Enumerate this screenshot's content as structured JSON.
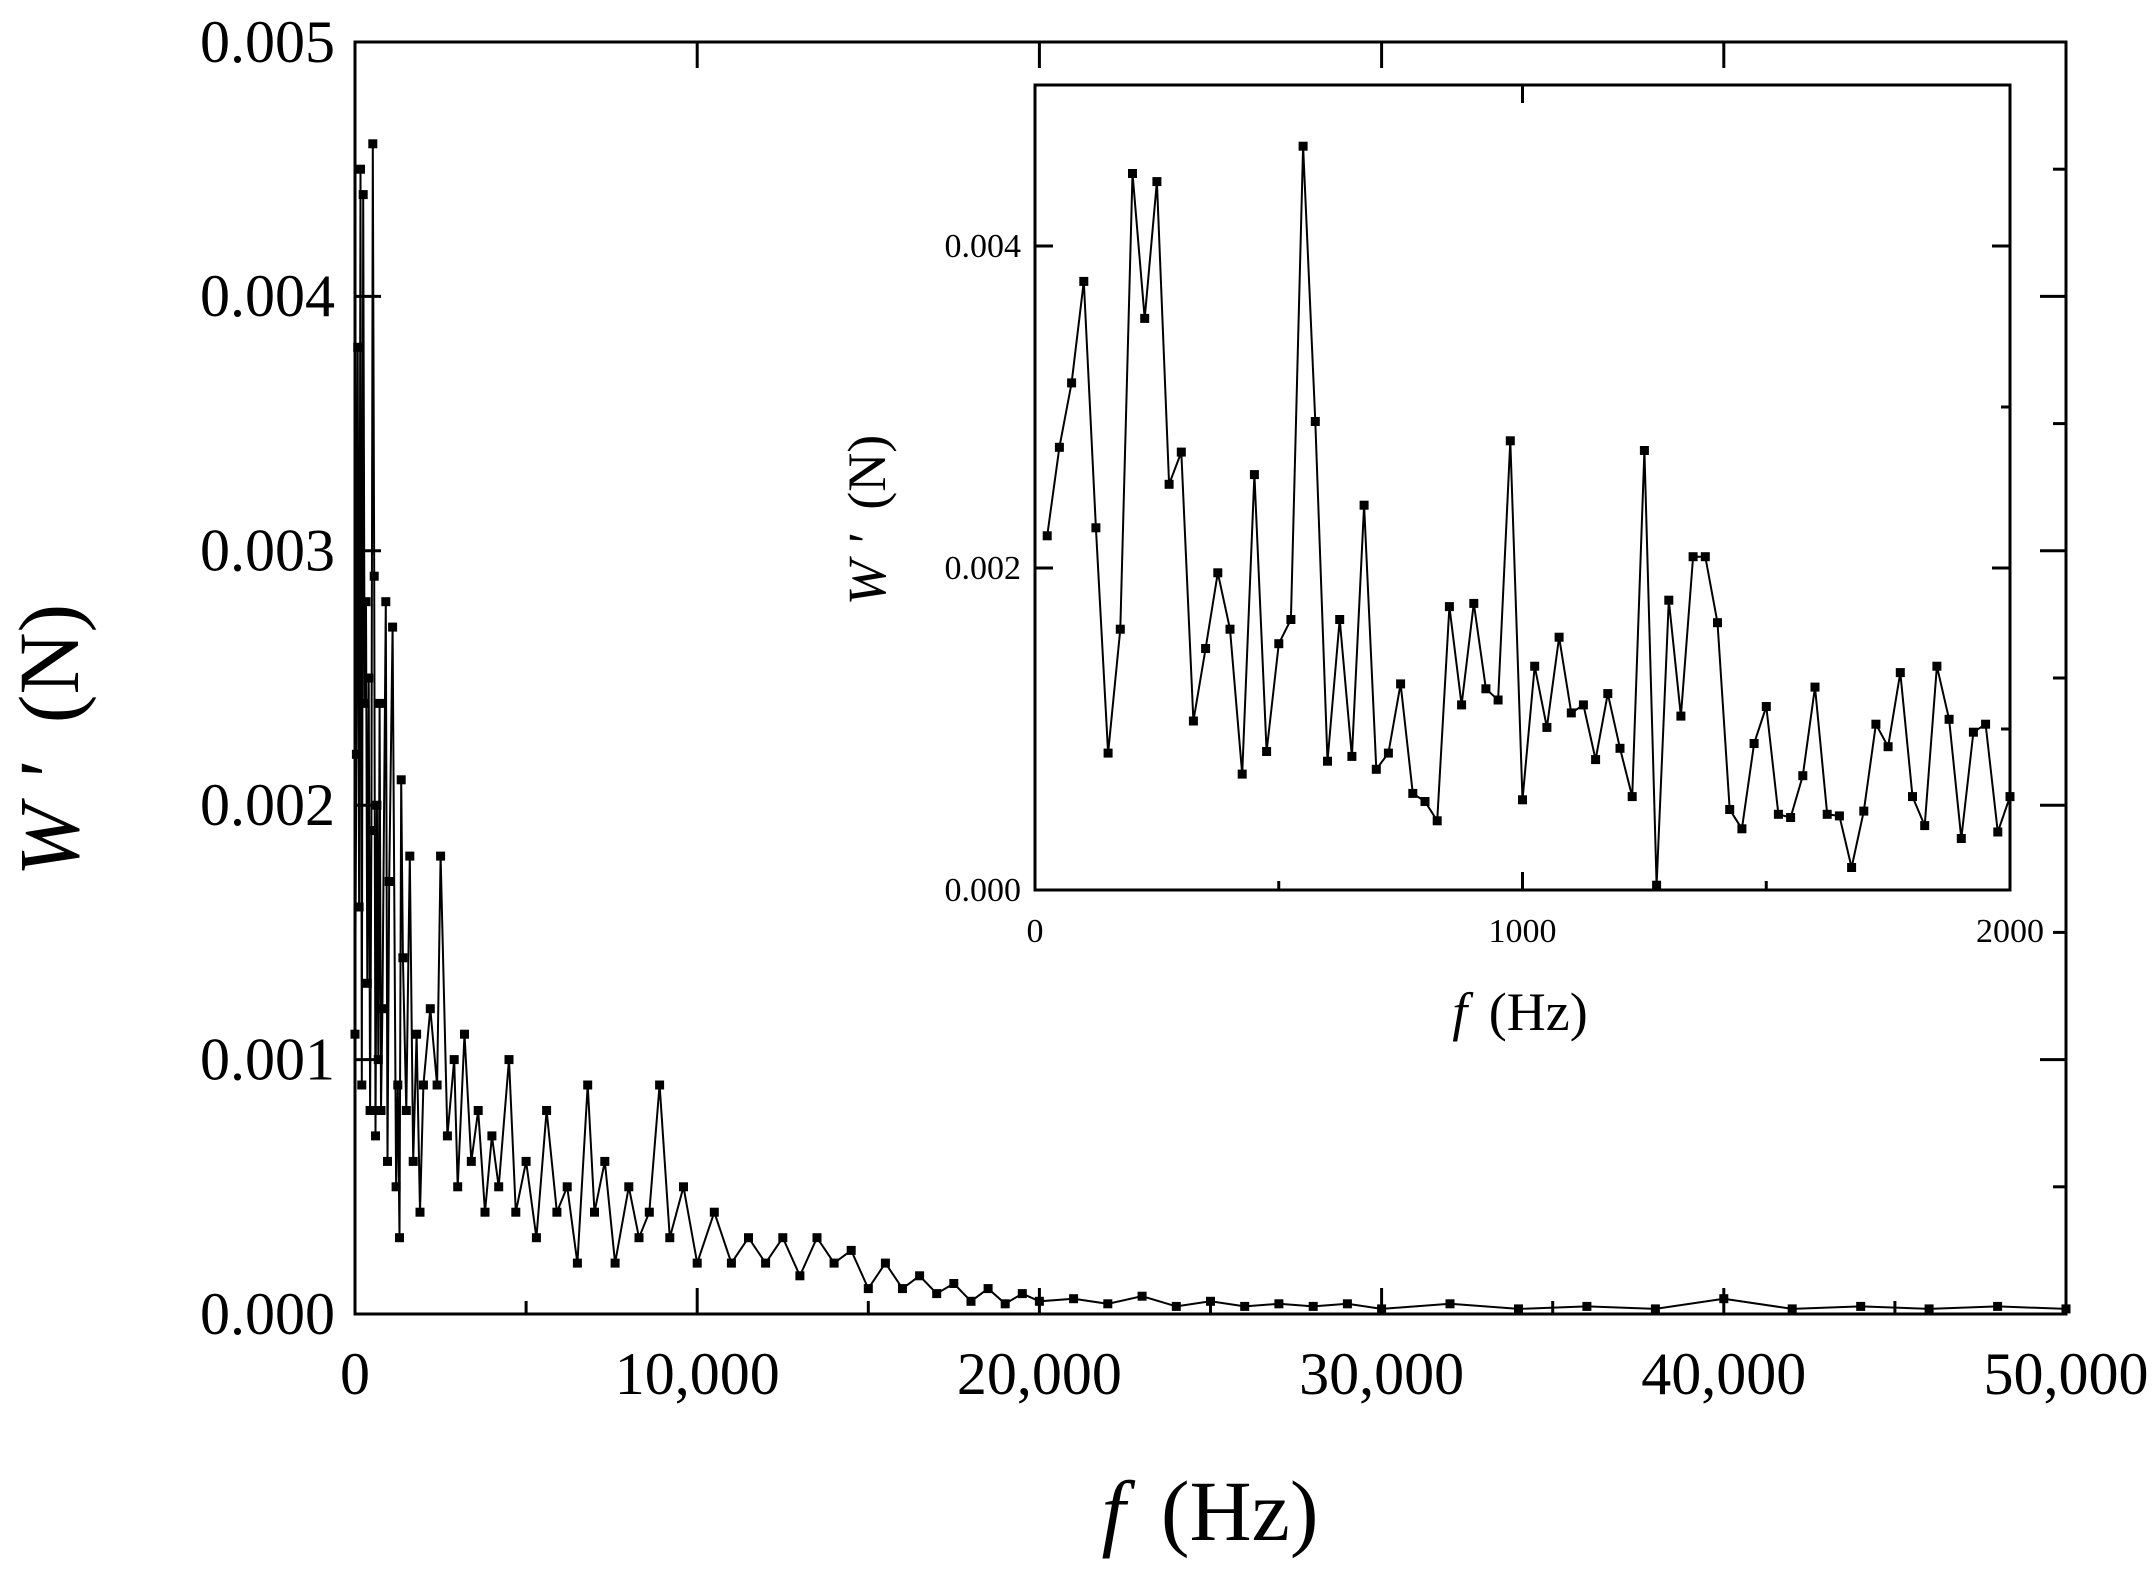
{
  "chart_data": [
    {
      "id": "main",
      "type": "line",
      "markers": "square",
      "xlabel_var": "f",
      "xlabel_unit": "(Hz)",
      "ylabel_var": "W '",
      "ylabel_unit": "(N)",
      "xlim": [
        0,
        50000
      ],
      "ylim": [
        0,
        0.005
      ],
      "xticks": [
        0,
        10000,
        20000,
        30000,
        40000,
        50000
      ],
      "xtick_labels": [
        "0",
        "10,000",
        "20,000",
        "30,000",
        "40,000",
        "50,000"
      ],
      "yticks": [
        0,
        0.001,
        0.002,
        0.003,
        0.004,
        0.005
      ],
      "ytick_labels": [
        "0.000",
        "0.001",
        "0.002",
        "0.003",
        "0.004",
        "0.005"
      ],
      "grid": false,
      "series": [
        {
          "color": "#000000",
          "points": [
            [
              0,
              0.0011
            ],
            [
              40,
              0.0022
            ],
            [
              80,
              0.0038
            ],
            [
              120,
              0.0016
            ],
            [
              160,
              0.0045
            ],
            [
              200,
              0.0009
            ],
            [
              240,
              0.0044
            ],
            [
              280,
              0.0024
            ],
            [
              320,
              0.0028
            ],
            [
              360,
              0.0013
            ],
            [
              400,
              0.0025
            ],
            [
              440,
              0.0008
            ],
            [
              480,
              0.0019
            ],
            [
              520,
              0.0046
            ],
            [
              560,
              0.0029
            ],
            [
              600,
              0.0007
            ],
            [
              640,
              0.002
            ],
            [
              680,
              0.001
            ],
            [
              720,
              0.0024
            ],
            [
              760,
              0.0008
            ],
            [
              800,
              0.0012
            ],
            [
              900,
              0.0028
            ],
            [
              950,
              0.0006
            ],
            [
              1000,
              0.0017
            ],
            [
              1100,
              0.0027
            ],
            [
              1200,
              0.0005
            ],
            [
              1250,
              0.0009
            ],
            [
              1300,
              0.0003
            ],
            [
              1350,
              0.0021
            ],
            [
              1400,
              0.0014
            ],
            [
              1500,
              0.0008
            ],
            [
              1600,
              0.0018
            ],
            [
              1700,
              0.0006
            ],
            [
              1800,
              0.0011
            ],
            [
              1900,
              0.0004
            ],
            [
              2000,
              0.0009
            ],
            [
              2200,
              0.0012
            ],
            [
              2400,
              0.0009
            ],
            [
              2500,
              0.0018
            ],
            [
              2700,
              0.0007
            ],
            [
              2900,
              0.001
            ],
            [
              3000,
              0.0005
            ],
            [
              3200,
              0.0011
            ],
            [
              3400,
              0.0006
            ],
            [
              3600,
              0.0008
            ],
            [
              3800,
              0.0004
            ],
            [
              4000,
              0.0007
            ],
            [
              4200,
              0.0005
            ],
            [
              4500,
              0.001
            ],
            [
              4700,
              0.0004
            ],
            [
              5000,
              0.0006
            ],
            [
              5300,
              0.0003
            ],
            [
              5600,
              0.0008
            ],
            [
              5900,
              0.0004
            ],
            [
              6200,
              0.0005
            ],
            [
              6500,
              0.0002
            ],
            [
              6800,
              0.0009
            ],
            [
              7000,
              0.0004
            ],
            [
              7300,
              0.0006
            ],
            [
              7600,
              0.0002
            ],
            [
              8000,
              0.0005
            ],
            [
              8300,
              0.0003
            ],
            [
              8600,
              0.0004
            ],
            [
              8900,
              0.0009
            ],
            [
              9200,
              0.0003
            ],
            [
              9600,
              0.0005
            ],
            [
              10000,
              0.0002
            ],
            [
              10500,
              0.0004
            ],
            [
              11000,
              0.0002
            ],
            [
              11500,
              0.0003
            ],
            [
              12000,
              0.0002
            ],
            [
              12500,
              0.0003
            ],
            [
              13000,
              0.00015
            ],
            [
              13500,
              0.0003
            ],
            [
              14000,
              0.0002
            ],
            [
              14500,
              0.00025
            ],
            [
              15000,
              0.0001
            ],
            [
              15500,
              0.0002
            ],
            [
              16000,
              0.0001
            ],
            [
              16500,
              0.00015
            ],
            [
              17000,
              8e-05
            ],
            [
              17500,
              0.00012
            ],
            [
              18000,
              5e-05
            ],
            [
              18500,
              0.0001
            ],
            [
              19000,
              4e-05
            ],
            [
              19500,
              8e-05
            ],
            [
              20000,
              5e-05
            ],
            [
              21000,
              6e-05
            ],
            [
              22000,
              4e-05
            ],
            [
              23000,
              7e-05
            ],
            [
              24000,
              3e-05
            ],
            [
              25000,
              5e-05
            ],
            [
              26000,
              3e-05
            ],
            [
              27000,
              4e-05
            ],
            [
              28000,
              3e-05
            ],
            [
              29000,
              4e-05
            ],
            [
              30000,
              2e-05
            ],
            [
              32000,
              4e-05
            ],
            [
              34000,
              2e-05
            ],
            [
              36000,
              3e-05
            ],
            [
              38000,
              2e-05
            ],
            [
              40000,
              6e-05
            ],
            [
              42000,
              2e-05
            ],
            [
              44000,
              3e-05
            ],
            [
              46000,
              2e-05
            ],
            [
              48000,
              3e-05
            ],
            [
              50000,
              2e-05
            ]
          ]
        }
      ]
    },
    {
      "id": "inset",
      "type": "line",
      "markers": "square",
      "xlabel_var": "f",
      "xlabel_unit": "(Hz)",
      "ylabel_var": "W '",
      "ylabel_unit": "(N)",
      "xlim": [
        0,
        2000
      ],
      "ylim": [
        0,
        0.005
      ],
      "xticks": [
        0,
        1000,
        2000
      ],
      "xtick_labels": [
        "0",
        "1000",
        "2000"
      ],
      "yticks": [
        0,
        0.002,
        0.004
      ],
      "ytick_labels": [
        "0.000",
        "0.002",
        "0.004"
      ],
      "grid": false,
      "series": [
        {
          "color": "#000000",
          "x": [
            25,
            50,
            75,
            100,
            125,
            150,
            175,
            200,
            225,
            250,
            275,
            300,
            325,
            350,
            375,
            400,
            425,
            450,
            475,
            500,
            525,
            550,
            575,
            600,
            625,
            650,
            675,
            700,
            725,
            750,
            775,
            800,
            825,
            850,
            875,
            900,
            925,
            950,
            975,
            1000,
            1025,
            1050,
            1075,
            1100,
            1125,
            1150,
            1175,
            1200,
            1225,
            1250,
            1275,
            1300,
            1325,
            1350,
            1375,
            1400,
            1425,
            1450,
            1475,
            1500,
            1525,
            1550,
            1575,
            1600,
            1625,
            1650,
            1675,
            1700,
            1725,
            1750,
            1775,
            1800,
            1825,
            1850,
            1875,
            1900,
            1925,
            1950,
            1975,
            2000
          ],
          "y": [
            0.0022,
            0.00275,
            0.00315,
            0.00378,
            0.00225,
            0.00085,
            0.00162,
            0.00445,
            0.00355,
            0.0044,
            0.00252,
            0.00272,
            0.00105,
            0.0015,
            0.00197,
            0.00162,
            0.00072,
            0.00258,
            0.00086,
            0.00153,
            0.00168,
            0.00462,
            0.00291,
            0.0008,
            0.00168,
            0.00083,
            0.00239,
            0.00075,
            0.00085,
            0.00128,
            0.0006,
            0.00055,
            0.00043,
            0.00176,
            0.00115,
            0.00178,
            0.00125,
            0.00118,
            0.00279,
            0.00056,
            0.00139,
            0.00101,
            0.00157,
            0.0011,
            0.00115,
            0.00081,
            0.00122,
            0.00088,
            0.00058,
            0.00273,
            3e-05,
            0.0018,
            0.00108,
            0.00207,
            0.00207,
            0.00166,
            0.0005,
            0.00038,
            0.00091,
            0.00114,
            0.00047,
            0.00045,
            0.00071,
            0.00126,
            0.00047,
            0.00046,
            0.00014,
            0.00049,
            0.00103,
            0.00089,
            0.00135,
            0.00058,
            0.0004,
            0.00139,
            0.00106,
            0.00032,
            0.00098,
            0.00103,
            0.00036,
            0.00058
          ]
        }
      ]
    }
  ]
}
